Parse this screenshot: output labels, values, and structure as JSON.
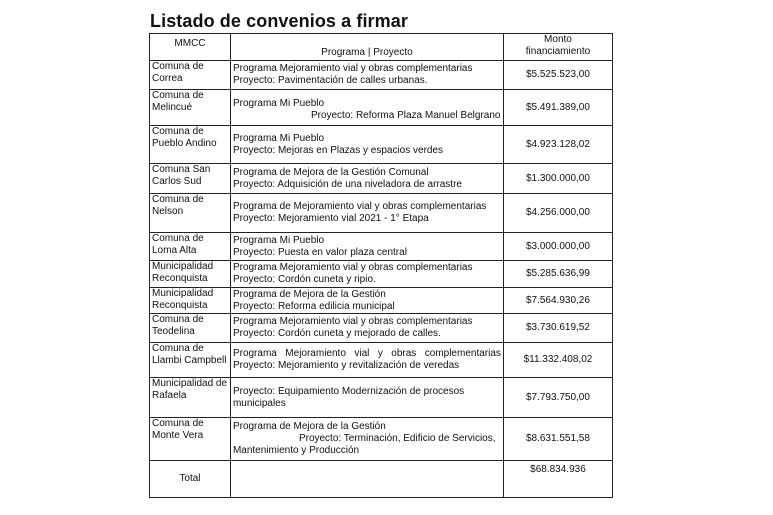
{
  "title": "Listado de convenios a firmar",
  "headers": {
    "mmcc": "MMCC",
    "programa": "Programa | Proyecto",
    "monto_1": "Monto",
    "monto_2": "financiamiento"
  },
  "rows": [
    {
      "mmcc_1": "Comuna de",
      "mmcc_2": "Correa",
      "line_1": "Programa Mejoramiento vial y obras complementarias",
      "line_2": "Proyecto: Pavimentación de calles urbanas.",
      "monto": "$5.525.523,00"
    },
    {
      "mmcc_1": "Comuna de",
      "mmcc_2": "Melincué",
      "line_1": "Programa Mi Pueblo",
      "line_2": "Proyecto: Reforma Plaza Manuel Belgrano",
      "monto": "$5.491.389,00"
    },
    {
      "mmcc_1": "Comuna de",
      "mmcc_2": "Pueblo Andino",
      "line_1": "Programa Mi Pueblo",
      "line_2": "Proyecto: Mejoras en Plazas y espacios verdes",
      "monto": "$4.923.128,02"
    },
    {
      "mmcc_1": "Comuna San",
      "mmcc_2": "Carlos Sud",
      "line_1": "Programa de Mejora de la Gestión Comunal",
      "line_2": "Proyecto: Adquisición de una niveladora de arrastre",
      "monto": "$1.300.000,00"
    },
    {
      "mmcc_1": "Comuna de",
      "mmcc_2": "Nelson",
      "line_1": "Programa de Mejoramiento vial y obras complementarias",
      "line_2": "Proyecto: Mejoramiento vial  2021 - 1° Etapa",
      "monto": "$4.256.000,00"
    },
    {
      "mmcc_1": "Comuna de",
      "mmcc_2": "Loma Alta",
      "line_1": "Programa Mi Pueblo",
      "line_2": "Proyecto: Puesta en valor plaza central",
      "monto": "$3.000.000,00"
    },
    {
      "mmcc_1": "Municipalidad",
      "mmcc_2": "Reconquista",
      "line_1": "Programa Mejoramiento vial y obras complementarias",
      "line_2": "Proyecto: Cordón cuneta y ripio.",
      "monto": "$5.285.636,99"
    },
    {
      "mmcc_1": "Municipalidad",
      "mmcc_2": "Reconquista",
      "line_1": "Programa de Mejora de la Gestión",
      "line_2": "Proyecto: Reforma edilicia municipal",
      "monto": "$7.564.930,26"
    },
    {
      "mmcc_1": "Comuna de",
      "mmcc_2": "Teodelina",
      "line_1": "Programa Mejoramiento vial y obras complementarias",
      "line_2": "Proyecto: Cordón cuneta y mejorado de calles.",
      "monto": "$3.730.619,52"
    },
    {
      "mmcc_1": "Comuna de",
      "mmcc_2": "Llambi Campbell",
      "line_1": "Programa Mejoramiento vial y obras complementarias",
      "line_2": "Proyecto: Mejoramiento y revitalización de veredas",
      "monto": "$11.332.408,02"
    },
    {
      "mmcc_1": "Municipalidad de",
      "mmcc_2": "Rafaela",
      "line_1": "Proyecto: Equipamiento Modernización de procesos",
      "line_2": "municipales",
      "monto": "$7.793.750,00"
    },
    {
      "mmcc_1": "Comuna de",
      "mmcc_2": "Monte Vera",
      "line_1": "Programa de Mejora de la Gestión",
      "line_2": "Proyecto: Terminación, Edificio de Servicios,",
      "line_3": "Mantenimiento y Producción",
      "monto": "$8.631.551,58"
    }
  ],
  "total": {
    "label": "Total",
    "monto": "$68.834.936"
  }
}
